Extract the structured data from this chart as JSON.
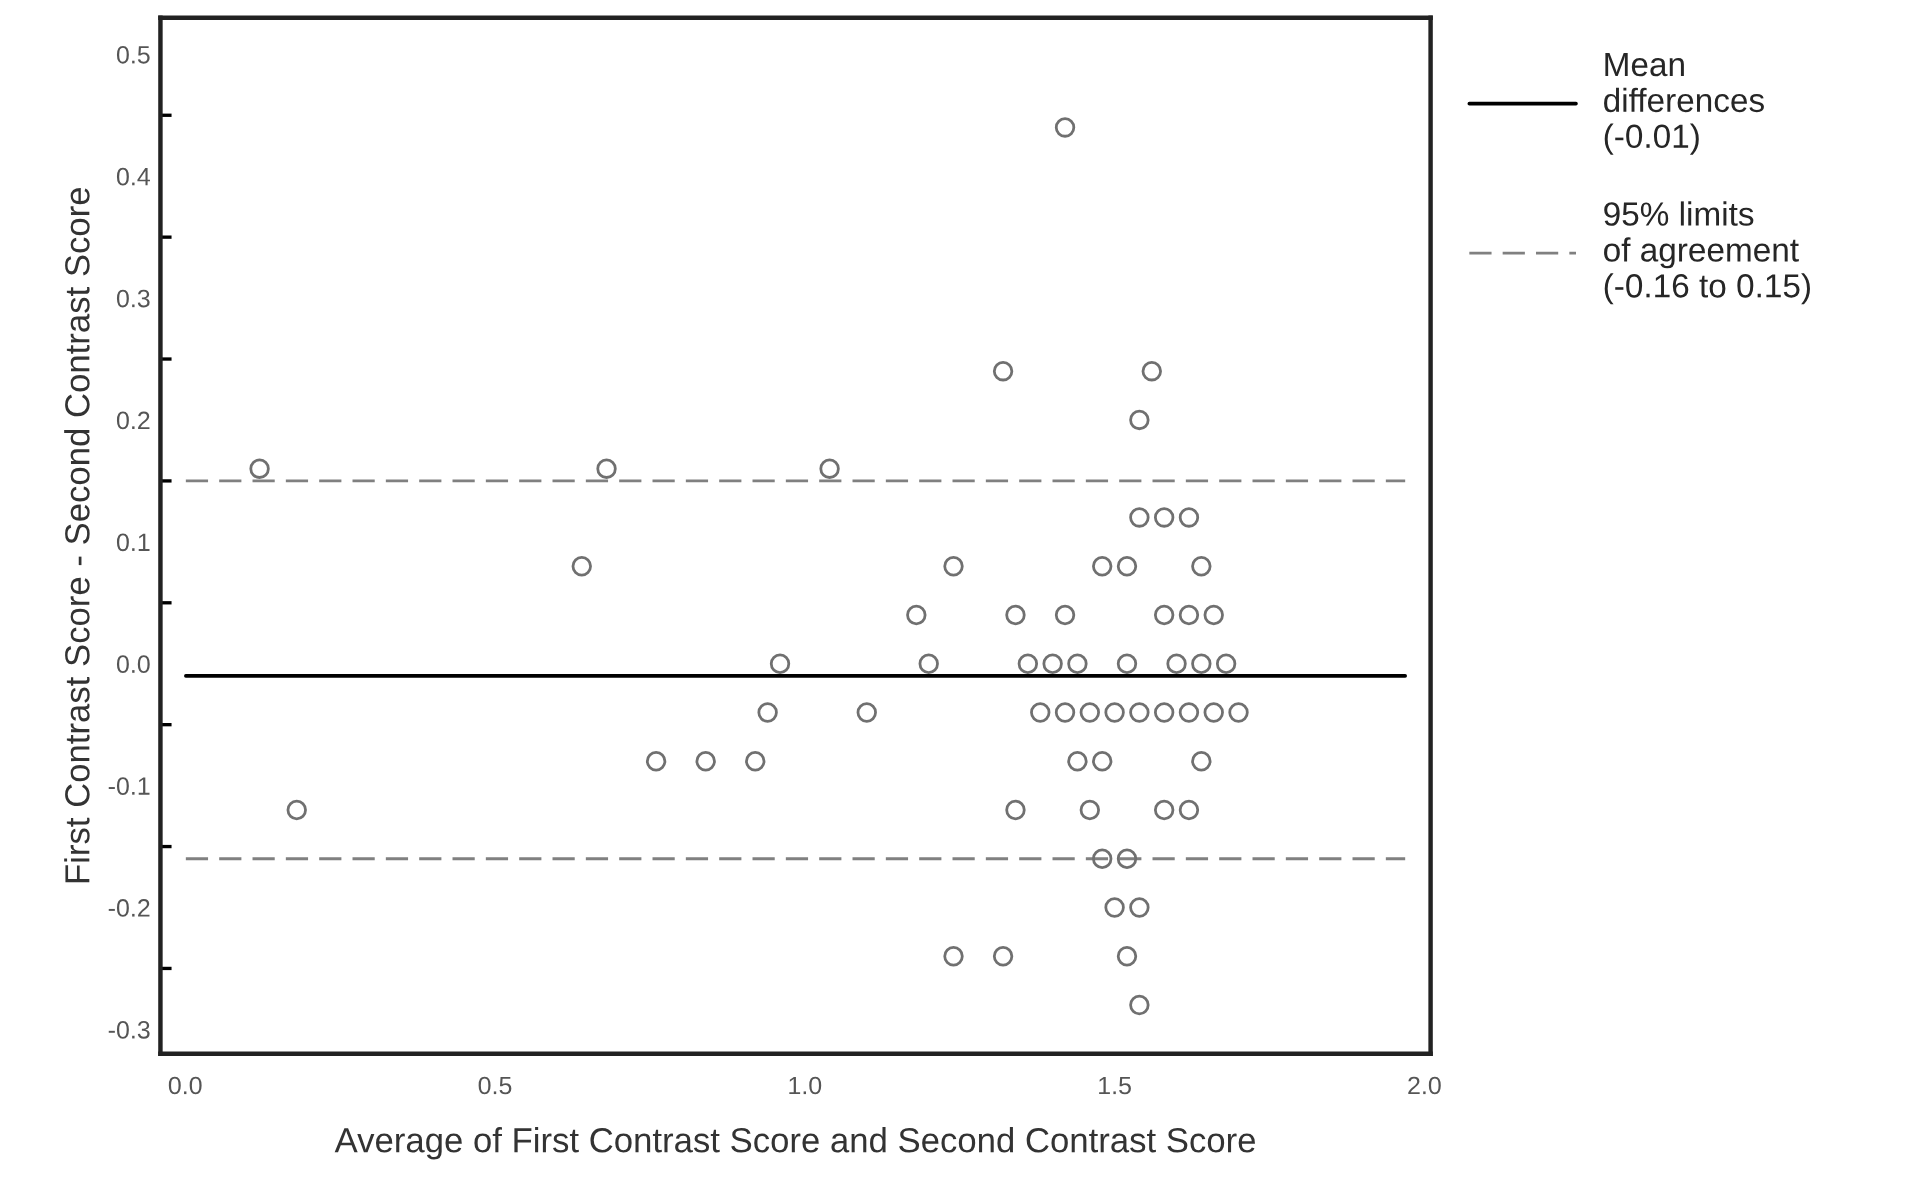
{
  "chart_data": {
    "type": "scatter",
    "xlabel": "Average of First Contrast Score and Second Contrast Score",
    "ylabel": "First Contrast Score - Second Contrast Score",
    "series": [
      {
        "color": "#707070",
        "x": [
          0.12,
          0.68,
          0.64,
          1.42,
          1.32,
          1.56,
          1.54,
          1.04,
          1.54,
          1.58,
          1.62,
          1.24,
          1.48,
          1.52,
          1.64,
          1.18,
          1.34,
          1.42,
          1.58,
          1.62,
          1.66,
          0.96,
          1.2,
          1.36,
          1.4,
          1.44,
          1.52,
          1.6,
          1.64,
          1.68,
          0.94,
          1.1,
          1.38,
          1.42,
          1.46,
          1.5,
          1.54,
          1.58,
          1.62,
          1.66,
          1.7,
          0.76,
          0.84,
          0.92,
          1.44,
          1.48,
          1.64,
          0.18,
          1.34,
          1.46,
          1.58,
          1.62,
          1.48,
          1.52,
          1.5,
          1.54,
          1.24,
          1.32,
          1.52,
          1.54
        ],
        "values": [
          0.16,
          0.16,
          0.08,
          0.44,
          0.24,
          0.24,
          0.2,
          0.16,
          0.12,
          0.12,
          0.12,
          0.08,
          0.08,
          0.08,
          0.08,
          0.04,
          0.04,
          0.04,
          0.04,
          0.04,
          0.04,
          0,
          0,
          0,
          0,
          0,
          0,
          0,
          0,
          0,
          -0.04,
          -0.04,
          -0.04,
          -0.04,
          -0.04,
          -0.04,
          -0.04,
          -0.04,
          -0.04,
          -0.04,
          -0.04,
          -0.08,
          -0.08,
          -0.08,
          -0.08,
          -0.08,
          -0.08,
          -0.12,
          -0.12,
          -0.12,
          -0.12,
          -0.12,
          -0.16,
          -0.16,
          -0.2,
          -0.2,
          -0.24,
          -0.24,
          -0.24,
          -0.28
        ]
      }
    ],
    "marker": "circle",
    "ref_lines": [
      {
        "axis": "y",
        "value": -0.01,
        "label": "Mean\ndifferences\n(-0.01)",
        "color": "#000000",
        "line_style": "solid"
      },
      {
        "axis": "y",
        "value": 0.15,
        "label": "95% limits\nof agreement\n(-0.16 to 0.15)",
        "color": "#808080",
        "line_style": "dashed"
      },
      {
        "axis": "y",
        "value": -0.16,
        "color": "#808080",
        "line_style": "dashed"
      }
    ],
    "legend": "right",
    "grid": false,
    "xlim": [
      -0.04,
      2.01
    ],
    "ylim": [
      -0.32,
      0.53
    ],
    "xticks": [
      {
        "value": 0,
        "label": "0.0"
      },
      0.5,
      {
        "value": 1,
        "label": "1.0"
      },
      1.5,
      {
        "value": 2,
        "label": "2.0"
      }
    ],
    "yticks": [
      {
        "value": -0.3,
        "label": "-0.3"
      },
      {
        "value": -0.25,
        "label": null
      },
      {
        "value": -0.2,
        "label": "-0.2"
      },
      {
        "value": -0.15,
        "label": null
      },
      {
        "value": -0.1,
        "label": "-0.1"
      },
      {
        "value": -0.05,
        "label": null
      },
      {
        "value": 0,
        "label": "0.0"
      },
      {
        "value": 0.05,
        "label": null
      },
      {
        "value": 0.1,
        "label": "0.1"
      },
      {
        "value": 0.15,
        "label": null
      },
      {
        "value": 0.2,
        "label": "0.2"
      },
      {
        "value": 0.25,
        "label": null
      },
      {
        "value": 0.3,
        "label": "0.3"
      },
      {
        "value": 0.35,
        "label": null
      },
      {
        "value": 0.4,
        "label": "0.4"
      },
      {
        "value": 0.45,
        "label": null
      },
      {
        "value": 0.5,
        "label": "0.5"
      }
    ]
  }
}
